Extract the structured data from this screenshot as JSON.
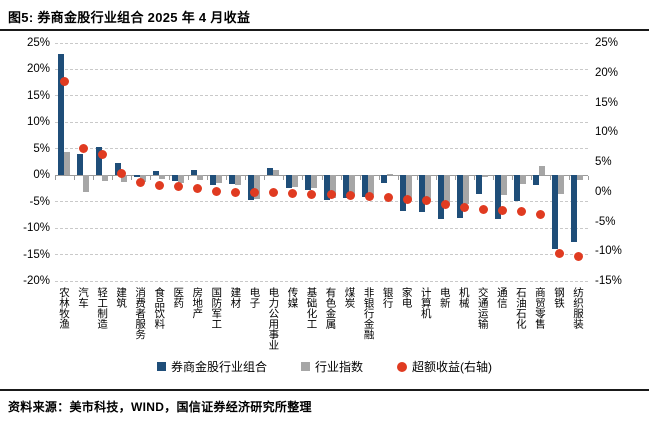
{
  "figure": {
    "title": "图5: 券商金股行业组合 2025 年 4 月收益",
    "source": "资料来源：美市科技，WIND，国信证券经济研究所整理"
  },
  "colors": {
    "portfolio_bar": "#1f4e79",
    "index_bar": "#a6a6a6",
    "excess_dot": "#e03b21",
    "gridline": "#c9c9c9",
    "axis_line": "#9b9b9b",
    "rule": "#1a1a1a"
  },
  "legend": [
    {
      "label": "券商金股行业组合",
      "marker": "square",
      "color": "#1f4e79"
    },
    {
      "label": "行业指数",
      "marker": "square",
      "color": "#a6a6a6"
    },
    {
      "label": "超额收益(右轴)",
      "marker": "circle",
      "color": "#e03b21"
    }
  ],
  "chart_data": {
    "type": "bar",
    "title": "图5: 券商金股行业组合 2025 年 4 月收益",
    "grid": "dashed-horizontal",
    "legend_position": "bottom",
    "categories": [
      "农林牧渔",
      "汽车",
      "轻工制造",
      "建筑",
      "消费者服务",
      "食品饮料",
      "医药",
      "房地产",
      "国防军工",
      "建材",
      "电子",
      "电力公用事业",
      "传媒",
      "基础化工",
      "有色金属",
      "煤炭",
      "非银行金融",
      "银行",
      "家电",
      "计算机",
      "电新",
      "机械",
      "交通运输",
      "通信",
      "石油石化",
      "商贸零售",
      "钢铁",
      "纺织服装"
    ],
    "series": [
      {
        "name": "券商金股行业组合",
        "type": "bar",
        "axis": "left",
        "color": "#1f4e79",
        "values": [
          23.0,
          4.0,
          5.4,
          2.3,
          -0.4,
          0.8,
          -1.1,
          1.0,
          -1.9,
          -1.7,
          -4.7,
          1.3,
          -2.5,
          -2.8,
          -4.7,
          -4.4,
          -4.2,
          -1.5,
          -6.8,
          -7.0,
          -8.3,
          -8.0,
          -3.6,
          -8.3,
          -4.9,
          -1.9,
          -14.0,
          -12.6
        ]
      },
      {
        "name": "行业指数",
        "type": "bar",
        "axis": "left",
        "color": "#a6a6a6",
        "values": [
          4.3,
          -3.2,
          -1.1,
          -1.3,
          -1.2,
          -0.7,
          -1.5,
          -0.9,
          -1.4,
          -1.9,
          -4.5,
          0.9,
          -2.2,
          -2.5,
          -4.3,
          -4.0,
          -3.7,
          0.3,
          -4.9,
          -4.6,
          -5.6,
          -5.5,
          -0.3,
          -3.8,
          -1.7,
          1.8,
          -3.6,
          -0.9
        ]
      },
      {
        "name": "超额收益(右轴)",
        "type": "scatter",
        "axis": "right",
        "color": "#e03b21",
        "values": [
          18.5,
          7.3,
          6.2,
          3.0,
          1.5,
          1.1,
          0.8,
          0.6,
          0.0,
          -0.1,
          -0.2,
          -0.2,
          -0.3,
          -0.4,
          -0.5,
          -0.6,
          -0.8,
          -1.0,
          -1.3,
          -1.5,
          -2.2,
          -2.6,
          -2.9,
          -3.1,
          -3.3,
          -3.9,
          -10.4,
          -10.8
        ]
      }
    ],
    "left_axis": {
      "min": -20,
      "max": 25,
      "step": 5,
      "format": "percent",
      "ticks": [
        "25%",
        "20%",
        "15%",
        "10%",
        "5%",
        "0%",
        "-5%",
        "-10%",
        "-15%",
        "-20%"
      ]
    },
    "right_axis": {
      "min": -15,
      "max": 25,
      "step": 5,
      "format": "percent",
      "ticks": [
        "25%",
        "20%",
        "15%",
        "10%",
        "5%",
        "0%",
        "-5%",
        "-10%",
        "-15%"
      ]
    }
  }
}
